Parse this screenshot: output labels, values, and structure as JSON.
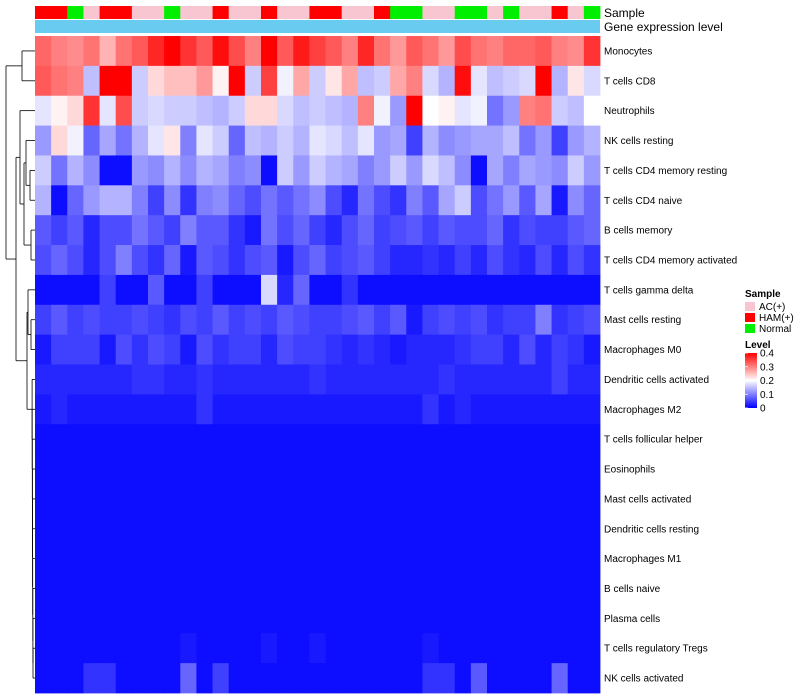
{
  "chart_data": {
    "type": "heatmap",
    "annotation_tracks": [
      "Sample",
      "Gene expression level"
    ],
    "legend": {
      "sample_title": "Sample",
      "sample_entries": [
        {
          "label": "AC(+)",
          "color": "#f7c6d0"
        },
        {
          "label": "HAM(+)",
          "color": "#ff0000"
        },
        {
          "label": "Normal",
          "color": "#00ee00"
        }
      ],
      "level_title": "Level",
      "level_ticks": [
        "0.4",
        "0.3",
        "0.2",
        "0.1",
        "0"
      ],
      "level_range": [
        0,
        0.4
      ]
    },
    "gene_expression_color": "#69cbef",
    "color_scale": {
      "low": "#0000ff",
      "mid": "#ffffff",
      "high": "#ff0000",
      "min": 0,
      "mid_value": 0.2,
      "max": 0.4
    },
    "sample_groups": [
      "HAM(+)",
      "HAM(+)",
      "Normal",
      "AC(+)",
      "HAM(+)",
      "HAM(+)",
      "AC(+)",
      "AC(+)",
      "Normal",
      "AC(+)",
      "AC(+)",
      "HAM(+)",
      "AC(+)",
      "AC(+)",
      "HAM(+)",
      "AC(+)",
      "AC(+)",
      "HAM(+)",
      "HAM(+)",
      "AC(+)",
      "AC(+)",
      "HAM(+)",
      "Normal",
      "Normal",
      "AC(+)",
      "AC(+)",
      "Normal",
      "Normal",
      "AC(+)",
      "Normal",
      "AC(+)",
      "AC(+)",
      "HAM(+)",
      "AC(+)",
      "Normal"
    ],
    "rows": [
      "Monocytes",
      "T cells CD8",
      "Neutrophils",
      "NK cells resting",
      "T cells CD4 memory resting",
      "T cells CD4 naive",
      "B cells memory",
      "T cells CD4 memory activated",
      "T cells gamma delta",
      "Mast cells resting",
      "Macrophages M0",
      "Dendritic cells activated",
      "Macrophages M2",
      "T cells follicular helper",
      "Eosinophils",
      "Mast cells activated",
      "Dendritic cells resting",
      "Macrophages M1",
      "B cells naive",
      "Plasma cells",
      "T cells regulatory  Tregs",
      "NK cells activated"
    ],
    "values": [
      [
        0.32,
        0.3,
        0.29,
        0.31,
        0.26,
        0.31,
        0.33,
        0.37,
        0.4,
        0.36,
        0.33,
        0.39,
        0.34,
        0.3,
        0.4,
        0.33,
        0.38,
        0.35,
        0.33,
        0.3,
        0.37,
        0.31,
        0.28,
        0.33,
        0.31,
        0.28,
        0.34,
        0.31,
        0.3,
        0.32,
        0.32,
        0.33,
        0.3,
        0.29,
        0.36
      ],
      [
        0.33,
        0.31,
        0.3,
        0.15,
        0.4,
        0.4,
        0.16,
        0.23,
        0.25,
        0.25,
        0.28,
        0.21,
        0.4,
        0.16,
        0.35,
        0.19,
        0.27,
        0.16,
        0.22,
        0.27,
        0.15,
        0.16,
        0.27,
        0.3,
        0.17,
        0.14,
        0.39,
        0.18,
        0.15,
        0.16,
        0.17,
        0.4,
        0.14,
        0.22,
        0.17
      ],
      [
        0.18,
        0.21,
        0.23,
        0.36,
        0.18,
        0.34,
        0.16,
        0.17,
        0.16,
        0.16,
        0.15,
        0.14,
        0.16,
        0.23,
        0.23,
        0.17,
        0.15,
        0.16,
        0.15,
        0.14,
        0.3,
        0.19,
        0.12,
        0.4,
        0.2,
        0.21,
        0.18,
        0.19,
        0.09,
        0.12,
        0.3,
        0.31,
        0.16,
        0.15,
        0.2
      ],
      [
        0.12,
        0.23,
        0.19,
        0.08,
        0.13,
        0.09,
        0.14,
        0.18,
        0.22,
        0.1,
        0.18,
        0.16,
        0.08,
        0.15,
        0.14,
        0.16,
        0.14,
        0.18,
        0.17,
        0.15,
        0.18,
        0.12,
        0.13,
        0.05,
        0.14,
        0.11,
        0.12,
        0.13,
        0.13,
        0.15,
        0.09,
        0.12,
        0.05,
        0.12,
        0.14
      ],
      [
        0.16,
        0.09,
        0.14,
        0.11,
        0.01,
        0.01,
        0.12,
        0.11,
        0.14,
        0.11,
        0.14,
        0.13,
        0.1,
        0.11,
        0.01,
        0.16,
        0.12,
        0.16,
        0.14,
        0.13,
        0.1,
        0.12,
        0.16,
        0.12,
        0.17,
        0.15,
        0.11,
        0.01,
        0.13,
        0.1,
        0.13,
        0.12,
        0.11,
        0.16,
        0.12
      ],
      [
        0.14,
        0.01,
        0.08,
        0.12,
        0.14,
        0.14,
        0.1,
        0.05,
        0.11,
        0.04,
        0.1,
        0.11,
        0.08,
        0.06,
        0.09,
        0.07,
        0.09,
        0.11,
        0.06,
        0.03,
        0.09,
        0.06,
        0.04,
        0.1,
        0.07,
        0.13,
        0.16,
        0.06,
        0.09,
        0.12,
        0.07,
        0.13,
        0.02,
        0.11,
        0.08
      ],
      [
        0.07,
        0.05,
        0.07,
        0.03,
        0.06,
        0.06,
        0.09,
        0.07,
        0.05,
        0.1,
        0.07,
        0.07,
        0.04,
        0.02,
        0.09,
        0.06,
        0.08,
        0.05,
        0.03,
        0.06,
        0.08,
        0.05,
        0.06,
        0.07,
        0.05,
        0.07,
        0.06,
        0.06,
        0.08,
        0.04,
        0.06,
        0.05,
        0.05,
        0.07,
        0.08
      ],
      [
        0.06,
        0.08,
        0.06,
        0.03,
        0.06,
        0.1,
        0.06,
        0.04,
        0.08,
        0.02,
        0.07,
        0.06,
        0.04,
        0.06,
        0.07,
        0.02,
        0.06,
        0.08,
        0.05,
        0.06,
        0.07,
        0.05,
        0.03,
        0.03,
        0.04,
        0.03,
        0.05,
        0.03,
        0.06,
        0.04,
        0.03,
        0.06,
        0.03,
        0.06,
        0.04
      ],
      [
        0.01,
        0.01,
        0.01,
        0.01,
        0.05,
        0.01,
        0.01,
        0.07,
        0.01,
        0.01,
        0.05,
        0.01,
        0.01,
        0.01,
        0.17,
        0.03,
        0.08,
        0.01,
        0.01,
        0.04,
        0.01,
        0.01,
        0.01,
        0.01,
        0.01,
        0.01,
        0.01,
        0.01,
        0.01,
        0.01,
        0.01,
        0.01,
        0.01,
        0.01,
        0.01
      ],
      [
        0.05,
        0.07,
        0.05,
        0.06,
        0.05,
        0.05,
        0.06,
        0.05,
        0.04,
        0.06,
        0.05,
        0.07,
        0.05,
        0.06,
        0.05,
        0.07,
        0.06,
        0.05,
        0.05,
        0.06,
        0.07,
        0.05,
        0.07,
        0.02,
        0.05,
        0.06,
        0.05,
        0.06,
        0.04,
        0.05,
        0.05,
        0.1,
        0.04,
        0.05,
        0.06
      ],
      [
        0.02,
        0.05,
        0.05,
        0.05,
        0.02,
        0.06,
        0.04,
        0.06,
        0.05,
        0.02,
        0.06,
        0.04,
        0.05,
        0.05,
        0.03,
        0.06,
        0.05,
        0.05,
        0.04,
        0.03,
        0.04,
        0.03,
        0.02,
        0.03,
        0.03,
        0.03,
        0.04,
        0.05,
        0.05,
        0.03,
        0.06,
        0.03,
        0.05,
        0.04,
        0.02
      ],
      [
        0.03,
        0.03,
        0.03,
        0.03,
        0.03,
        0.03,
        0.04,
        0.04,
        0.03,
        0.03,
        0.04,
        0.03,
        0.03,
        0.03,
        0.03,
        0.03,
        0.03,
        0.04,
        0.03,
        0.03,
        0.03,
        0.03,
        0.03,
        0.03,
        0.03,
        0.04,
        0.03,
        0.03,
        0.03,
        0.03,
        0.03,
        0.03,
        0.05,
        0.03,
        0.03
      ],
      [
        0.02,
        0.03,
        0.02,
        0.02,
        0.02,
        0.02,
        0.02,
        0.02,
        0.02,
        0.02,
        0.04,
        0.02,
        0.02,
        0.02,
        0.02,
        0.02,
        0.02,
        0.02,
        0.02,
        0.02,
        0.02,
        0.02,
        0.02,
        0.02,
        0.04,
        0.02,
        0.03,
        0.02,
        0.02,
        0.02,
        0.02,
        0.02,
        0.02,
        0.02,
        0.02
      ],
      [
        0.01,
        0.01,
        0.01,
        0.01,
        0.01,
        0.01,
        0.01,
        0.01,
        0.01,
        0.01,
        0.01,
        0.01,
        0.01,
        0.01,
        0.01,
        0.01,
        0.01,
        0.01,
        0.01,
        0.01,
        0.01,
        0.01,
        0.01,
        0.01,
        0.01,
        0.01,
        0.01,
        0.01,
        0.01,
        0.01,
        0.01,
        0.01,
        0.01,
        0.01,
        0.01
      ],
      [
        0.01,
        0.01,
        0.01,
        0.01,
        0.01,
        0.01,
        0.01,
        0.01,
        0.01,
        0.01,
        0.01,
        0.01,
        0.01,
        0.01,
        0.01,
        0.01,
        0.01,
        0.01,
        0.01,
        0.01,
        0.01,
        0.01,
        0.01,
        0.01,
        0.01,
        0.01,
        0.01,
        0.01,
        0.01,
        0.01,
        0.01,
        0.01,
        0.01,
        0.01,
        0.01
      ],
      [
        0.01,
        0.01,
        0.01,
        0.01,
        0.01,
        0.01,
        0.01,
        0.01,
        0.01,
        0.01,
        0.01,
        0.01,
        0.01,
        0.01,
        0.01,
        0.01,
        0.01,
        0.01,
        0.01,
        0.01,
        0.01,
        0.01,
        0.01,
        0.01,
        0.01,
        0.01,
        0.01,
        0.01,
        0.01,
        0.01,
        0.01,
        0.01,
        0.01,
        0.01,
        0.01
      ],
      [
        0.01,
        0.01,
        0.01,
        0.01,
        0.01,
        0.01,
        0.01,
        0.01,
        0.01,
        0.01,
        0.01,
        0.01,
        0.01,
        0.01,
        0.01,
        0.01,
        0.01,
        0.01,
        0.01,
        0.01,
        0.01,
        0.01,
        0.01,
        0.01,
        0.01,
        0.01,
        0.01,
        0.01,
        0.01,
        0.01,
        0.01,
        0.01,
        0.01,
        0.01,
        0.01
      ],
      [
        0.01,
        0.01,
        0.01,
        0.01,
        0.01,
        0.01,
        0.01,
        0.01,
        0.01,
        0.01,
        0.01,
        0.01,
        0.01,
        0.01,
        0.01,
        0.01,
        0.01,
        0.01,
        0.01,
        0.01,
        0.01,
        0.01,
        0.01,
        0.01,
        0.01,
        0.01,
        0.01,
        0.01,
        0.01,
        0.01,
        0.01,
        0.01,
        0.01,
        0.01,
        0.01
      ],
      [
        0.01,
        0.01,
        0.01,
        0.01,
        0.01,
        0.01,
        0.01,
        0.01,
        0.01,
        0.01,
        0.01,
        0.01,
        0.01,
        0.01,
        0.01,
        0.01,
        0.01,
        0.01,
        0.01,
        0.01,
        0.01,
        0.01,
        0.01,
        0.01,
        0.01,
        0.01,
        0.01,
        0.01,
        0.01,
        0.01,
        0.01,
        0.01,
        0.01,
        0.01,
        0.01
      ],
      [
        0.01,
        0.01,
        0.01,
        0.01,
        0.01,
        0.01,
        0.01,
        0.01,
        0.01,
        0.01,
        0.01,
        0.01,
        0.01,
        0.01,
        0.01,
        0.01,
        0.01,
        0.01,
        0.01,
        0.01,
        0.01,
        0.01,
        0.01,
        0.01,
        0.01,
        0.01,
        0.01,
        0.01,
        0.01,
        0.01,
        0.01,
        0.01,
        0.01,
        0.01,
        0.01
      ],
      [
        0.01,
        0.01,
        0.01,
        0.01,
        0.01,
        0.01,
        0.01,
        0.01,
        0.01,
        0.02,
        0.01,
        0.01,
        0.01,
        0.01,
        0.02,
        0.01,
        0.01,
        0.02,
        0.01,
        0.01,
        0.01,
        0.01,
        0.01,
        0.01,
        0.02,
        0.01,
        0.01,
        0.01,
        0.01,
        0.01,
        0.01,
        0.01,
        0.01,
        0.01,
        0.01
      ],
      [
        0.01,
        0.01,
        0.01,
        0.04,
        0.04,
        0.01,
        0.01,
        0.01,
        0.01,
        0.08,
        0.01,
        0.05,
        0.01,
        0.01,
        0.01,
        0.01,
        0.01,
        0.01,
        0.01,
        0.01,
        0.01,
        0.01,
        0.01,
        0.01,
        0.04,
        0.04,
        0.01,
        0.07,
        0.01,
        0.01,
        0.01,
        0.01,
        0.08,
        0.01,
        0.01
      ]
    ]
  }
}
